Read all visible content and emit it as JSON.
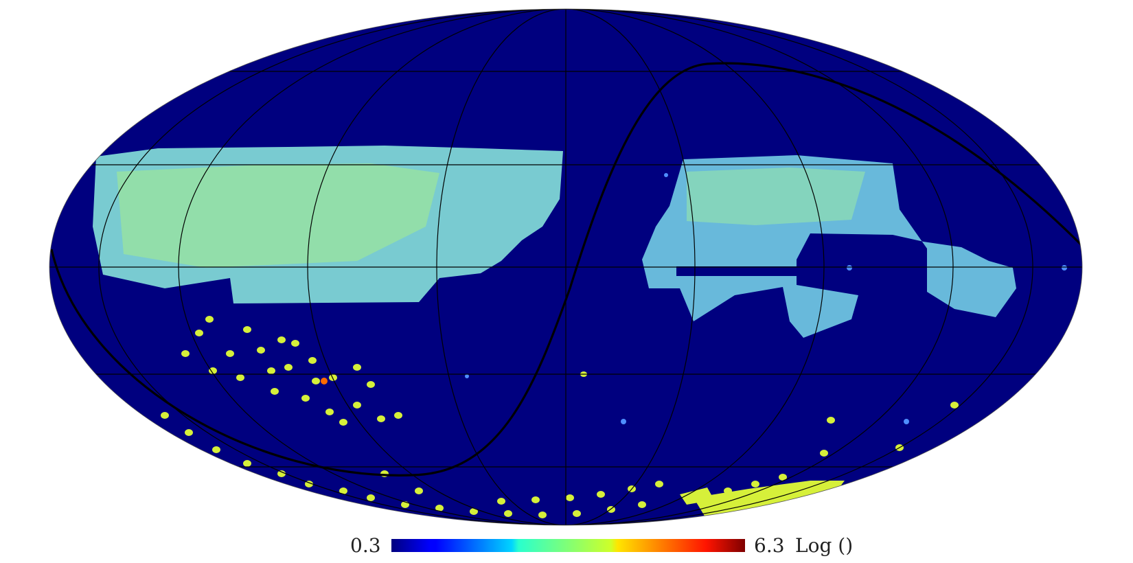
{
  "colorbar": {
    "min_label": "0.3",
    "max_label": "6.3",
    "unit_label": "Log ()",
    "colormap": "jet"
  },
  "map": {
    "projection": "mollweide",
    "background_color": "#00007f",
    "graticule_color": "#000000",
    "ecliptic_line_color": "#000000"
  }
}
